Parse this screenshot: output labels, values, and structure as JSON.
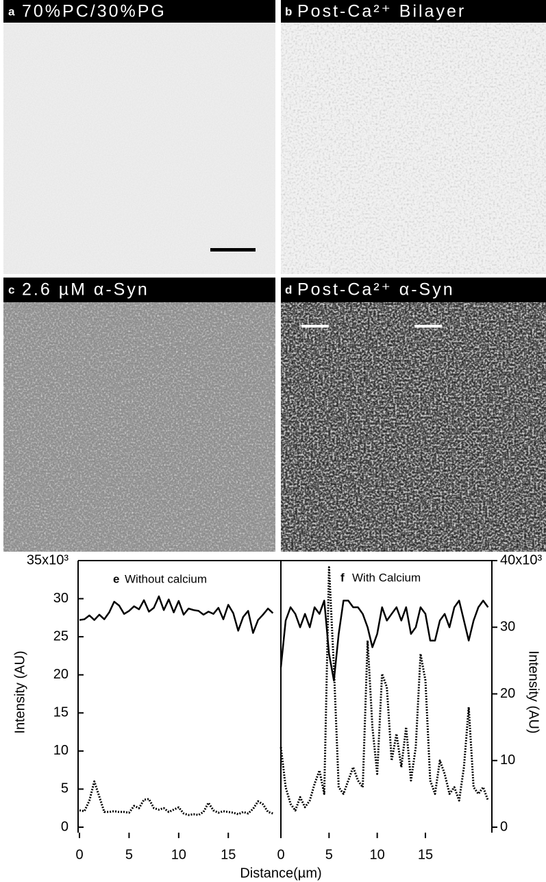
{
  "figure": {
    "panels": [
      {
        "letter": "a",
        "title": "70%PC/30%PG"
      },
      {
        "letter": "b",
        "title": "Post-Ca²⁺ Bilayer"
      },
      {
        "letter": "c",
        "title": "2.6 µM α-Syn"
      },
      {
        "letter": "d",
        "title": "Post-Ca²⁺ α-Syn"
      }
    ],
    "xlabel": "Distance(µm)"
  },
  "chart_data": [
    {
      "type": "line",
      "letter": "e",
      "annotation": "Without calcium",
      "ylabel": "Intensity (AU)",
      "xlim": [
        0,
        20.3
      ],
      "xticks": [
        0,
        5,
        10,
        15
      ],
      "ylim": [
        0,
        35
      ],
      "yticks": [
        0,
        5,
        10,
        15,
        20,
        25,
        30,
        {
          "value": 35,
          "label": "35x10³"
        }
      ],
      "x": [
        0,
        0.5,
        1,
        1.5,
        2,
        2.5,
        3,
        3.5,
        4,
        4.5,
        5,
        5.5,
        6,
        6.5,
        7,
        7.5,
        8,
        8.5,
        9,
        9.5,
        10,
        10.5,
        11,
        11.5,
        12,
        12.5,
        13,
        13.5,
        14,
        14.5,
        15,
        15.5,
        16,
        16.5,
        17,
        17.5,
        18,
        18.5,
        19,
        19.5
      ],
      "series": [
        {
          "color": "#000000",
          "style": "solid",
          "values": [
            27.2,
            27.3,
            27.8,
            27.2,
            27.9,
            27.3,
            28.2,
            29.6,
            29.1,
            28.0,
            28.4,
            29.0,
            28.6,
            29.8,
            28.3,
            28.8,
            30.3,
            28.5,
            29.9,
            28.2,
            29.7,
            27.9,
            28.7,
            28.5,
            28.4,
            27.9,
            28.3,
            28.0,
            28.8,
            27.3,
            29.2,
            28.1,
            25.8,
            27.6,
            28.4,
            25.5,
            27.2,
            27.9,
            28.7,
            28.1
          ]
        },
        {
          "color": "#000000",
          "style": "dotted",
          "values": [
            2.2,
            2.1,
            3.5,
            6.0,
            4.0,
            2.0,
            2.0,
            2.1,
            2.0,
            2.0,
            1.9,
            2.8,
            2.5,
            3.6,
            3.7,
            2.5,
            2.3,
            2.5,
            2.0,
            2.3,
            2.6,
            1.8,
            1.6,
            1.7,
            1.6,
            2.0,
            3.2,
            2.2,
            1.9,
            2.1,
            2.0,
            1.9,
            1.7,
            2.0,
            1.8,
            2.4,
            3.4,
            3.0,
            2.0,
            1.8
          ]
        }
      ]
    },
    {
      "type": "line",
      "letter": "f",
      "annotation": "With Calcium",
      "y2label": "Intensity (AU)",
      "xlim": [
        0,
        21.9
      ],
      "xticks": [
        0,
        5,
        10,
        15
      ],
      "y2lim": [
        0,
        40
      ],
      "y2ticks": [
        0,
        10,
        20,
        30,
        {
          "value": 40,
          "label": "40x10³"
        }
      ],
      "x": [
        0,
        0.5,
        1,
        1.5,
        2,
        2.5,
        3,
        3.5,
        4,
        4.5,
        5,
        5.5,
        6,
        6.5,
        7,
        7.5,
        8,
        8.5,
        9,
        9.5,
        10,
        10.5,
        11,
        11.5,
        12,
        12.5,
        13,
        13.5,
        14,
        14.5,
        15,
        15.5,
        16,
        16.5,
        17,
        17.5,
        18,
        18.5,
        19,
        19.5,
        20,
        20.5,
        21,
        21.5
      ],
      "series": [
        {
          "color": "#000000",
          "style": "solid",
          "axis": "y2",
          "values": [
            24,
            31,
            33,
            32,
            30,
            32,
            30,
            33,
            32,
            34,
            26,
            22,
            29,
            34,
            34,
            33,
            33,
            32,
            30,
            27,
            29,
            33,
            31,
            32,
            33,
            31,
            33,
            29,
            30,
            33,
            32,
            28,
            28,
            31,
            32,
            30,
            33,
            34,
            31,
            28,
            31,
            33,
            34,
            33
          ]
        },
        {
          "color": "#000000",
          "style": "dotted",
          "axis": "y2",
          "values": [
            12,
            6,
            3.5,
            2.5,
            4.5,
            3,
            4,
            6.5,
            8.5,
            5,
            39,
            24,
            6,
            5,
            7,
            9,
            7,
            6,
            28,
            15,
            8,
            23,
            21,
            10,
            14,
            9,
            15,
            7,
            12,
            26,
            22,
            7,
            5,
            10,
            8,
            5,
            6,
            4,
            9,
            18,
            6,
            5,
            6,
            4
          ]
        }
      ]
    }
  ]
}
